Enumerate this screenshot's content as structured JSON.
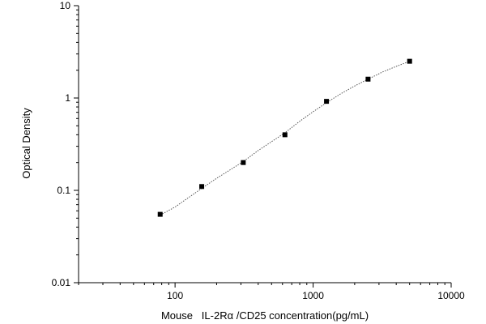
{
  "chart_data": {
    "type": "scatter",
    "title": "",
    "xlabel": "Mouse   IL-2Rα /CD25 concentration(pg/mL)",
    "ylabel": "Optical Density",
    "xscale": "log",
    "yscale": "log",
    "xlim": [
      20,
      10000
    ],
    "ylim": [
      0.01,
      10
    ],
    "x_ticks": [
      {
        "value": 100,
        "label": "100"
      },
      {
        "value": 1000,
        "label": "1000"
      },
      {
        "value": 10000,
        "label": "10000"
      }
    ],
    "y_ticks": [
      {
        "value": 0.01,
        "label": "0.01"
      },
      {
        "value": 0.1,
        "label": "0.1"
      },
      {
        "value": 1,
        "label": "1"
      },
      {
        "value": 10,
        "label": "10"
      }
    ],
    "grid": false,
    "legend": "none",
    "series": [
      {
        "marker": "square",
        "color": "#000000",
        "x": [
          78,
          156,
          312,
          625,
          1250,
          2500,
          5000
        ],
        "y": [
          0.055,
          0.11,
          0.2,
          0.4,
          0.92,
          1.6,
          2.5
        ]
      }
    ],
    "fit_curve": {
      "style": "dotted",
      "color": "#555555",
      "x": [
        78,
        100,
        156,
        200,
        312,
        400,
        625,
        800,
        1000,
        1250,
        1600,
        2000,
        2500,
        3200,
        4000,
        5000
      ],
      "y": [
        0.054,
        0.066,
        0.105,
        0.135,
        0.205,
        0.27,
        0.42,
        0.56,
        0.71,
        0.89,
        1.12,
        1.35,
        1.6,
        1.92,
        2.2,
        2.5
      ]
    }
  }
}
